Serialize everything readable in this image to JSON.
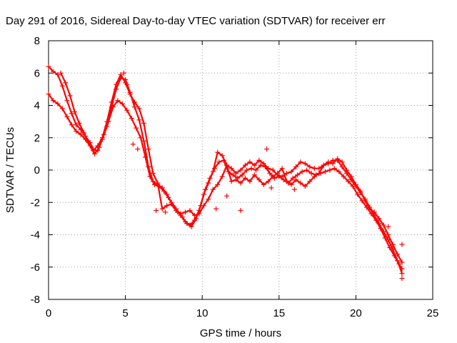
{
  "chart_data": {
    "type": "scatter",
    "title": "Day 291 of 2016, Sidereal Day-to-day VTEC variation (SDTVAR) for receiver err",
    "xlabel": "GPS time / hours",
    "ylabel": "SDTVAR / TECUs",
    "xlim": [
      0,
      25
    ],
    "ylim": [
      -8,
      8
    ],
    "x_ticks": [
      0,
      5,
      10,
      15,
      20,
      25
    ],
    "y_ticks": [
      -8,
      -6,
      -4,
      -2,
      0,
      2,
      4,
      6,
      8
    ],
    "x_tick_labels": [
      "0",
      "5",
      "10",
      "15",
      "20",
      "25"
    ],
    "y_tick_labels": [
      "-8",
      "-6",
      "-4",
      "-2",
      "0",
      "2",
      "4",
      "6",
      "8"
    ],
    "grid": true,
    "marker": "plus",
    "color": "#ff0000",
    "series": [
      {
        "x": [
          0.0,
          0.3,
          0.6,
          0.9,
          1.2,
          1.5,
          1.8,
          2.1,
          2.4,
          2.7,
          2.9,
          3.2,
          3.5,
          3.8,
          4.1,
          4.4,
          4.7,
          5.0,
          5.3,
          5.6,
          5.9,
          6.2,
          6.5,
          6.8,
          7.1,
          7.4,
          7.7,
          8.0,
          8.3,
          8.6,
          8.9,
          9.2,
          9.5,
          9.8,
          10.1,
          10.4,
          10.7,
          11.0,
          11.3,
          11.6,
          11.9,
          12.2,
          12.5,
          12.8,
          13.1,
          13.4,
          13.7,
          14.0,
          14.3,
          14.6,
          14.9,
          15.2,
          15.5,
          15.8,
          16.1,
          16.4,
          16.7,
          17.0,
          17.3,
          17.6,
          17.9,
          18.2,
          18.5,
          18.8,
          19.1,
          19.4,
          19.7,
          20.0,
          20.3,
          20.6,
          20.9,
          21.2,
          21.5,
          21.8,
          22.1,
          22.4,
          22.7,
          23.0
        ],
        "y": [
          6.4,
          6.1,
          5.9,
          5.2,
          4.3,
          3.5,
          2.8,
          2.5,
          2.1,
          1.7,
          1.3,
          1.2,
          1.9,
          2.7,
          3.9,
          5.0,
          5.7,
          5.6,
          4.8,
          3.9,
          3.1,
          1.8,
          0.2,
          -0.7,
          -0.9,
          -1.1,
          -1.5,
          -2.0,
          -2.4,
          -2.8,
          -3.2,
          -3.4,
          -3.1,
          -2.5,
          -1.5,
          -0.8,
          -0.1,
          1.1,
          0.9,
          0.3,
          0.1,
          -0.2,
          0.0,
          0.3,
          0.5,
          0.3,
          0.6,
          0.4,
          0.1,
          0.0,
          -0.3,
          -0.4,
          -0.2,
          -0.1,
          0.2,
          0.5,
          0.4,
          0.2,
          0.1,
          0.1,
          0.3,
          0.4,
          0.6,
          0.6,
          0.2,
          -0.2,
          -0.6,
          -1.0,
          -1.4,
          -1.8,
          -2.3,
          -2.8,
          -3.3,
          -3.8,
          -4.3,
          -4.9,
          -5.6,
          -6.4
        ]
      },
      {
        "x": [
          0.0,
          0.3,
          0.6,
          0.9,
          1.2,
          1.5,
          1.8,
          2.1,
          2.4,
          2.7,
          3.0,
          3.3,
          3.6,
          3.9,
          4.2,
          4.5,
          4.8,
          5.1,
          5.4,
          5.7,
          6.0,
          6.3,
          6.6,
          6.9,
          7.2,
          7.5,
          7.8,
          8.1,
          8.4,
          8.7,
          9.0,
          9.3,
          9.6,
          9.9,
          10.2,
          10.5,
          10.8,
          11.1,
          11.4,
          11.7,
          12.0,
          12.3,
          12.6,
          12.9,
          13.2,
          13.5,
          13.8,
          14.1,
          14.4,
          14.7,
          15.0,
          15.3,
          15.6,
          15.9,
          16.2,
          16.5,
          16.8,
          17.1,
          17.4,
          17.7,
          18.0,
          18.3,
          18.6,
          18.9,
          19.2,
          19.5,
          19.8,
          20.1,
          20.4,
          20.7,
          21.0,
          21.3,
          21.6,
          21.9,
          22.2,
          22.5,
          22.8,
          23.0
        ],
        "y": [
          4.7,
          4.3,
          4.1,
          3.8,
          3.3,
          2.8,
          2.4,
          2.2,
          1.9,
          1.5,
          1.0,
          1.4,
          2.2,
          3.0,
          3.9,
          4.3,
          4.1,
          3.7,
          3.2,
          2.6,
          2.0,
          0.8,
          -0.4,
          -0.9,
          -1.0,
          -1.3,
          -1.7,
          -2.2,
          -2.6,
          -2.9,
          -3.3,
          -3.5,
          -3.0,
          -2.2,
          -1.2,
          -0.5,
          0.1,
          0.5,
          0.6,
          -0.1,
          -0.3,
          -0.5,
          -0.3,
          0.0,
          0.1,
          0.0,
          0.3,
          0.2,
          -0.2,
          -0.5,
          -0.4,
          -0.6,
          -0.8,
          -0.5,
          -0.3,
          -0.1,
          0.0,
          -0.2,
          -0.3,
          -0.2,
          -0.1,
          0.0,
          0.1,
          -0.1,
          -0.4,
          -0.7,
          -1.0,
          -1.5,
          -1.9,
          -2.3,
          -2.7,
          -3.1,
          -3.6,
          -4.2,
          -4.8,
          -5.3,
          -5.8,
          -6.1
        ]
      },
      {
        "x": [
          0.8,
          1.1,
          1.4,
          1.7,
          2.0,
          2.3,
          2.6,
          2.9,
          3.2,
          3.5,
          3.8,
          4.1,
          4.4,
          4.7,
          5.0,
          5.3,
          5.6,
          5.9,
          6.2,
          6.5,
          6.8,
          7.1,
          7.4,
          7.7,
          8.0,
          8.3,
          8.6,
          8.9,
          9.2,
          9.5,
          9.8,
          10.1,
          10.4,
          10.7,
          11.0,
          11.3,
          11.6,
          11.9,
          12.2,
          12.5,
          12.8,
          13.1,
          13.4,
          13.7,
          14.0,
          14.3,
          14.6,
          14.9,
          15.2,
          15.5,
          15.8,
          16.1,
          16.4,
          16.7,
          17.0,
          17.3,
          17.6,
          17.9,
          18.2,
          18.5,
          18.8,
          19.1,
          19.4,
          19.7,
          20.0,
          20.3,
          20.6,
          20.9,
          21.2,
          21.5,
          21.8,
          22.1,
          22.4,
          22.7,
          23.0
        ],
        "y": [
          6.0,
          5.4,
          4.6,
          3.6,
          2.9,
          2.3,
          1.7,
          1.2,
          1.5,
          2.0,
          3.0,
          4.2,
          5.3,
          5.9,
          5.4,
          4.7,
          4.2,
          3.8,
          2.9,
          1.3,
          -0.2,
          -0.8,
          -2.4,
          -2.2,
          -2.1,
          -2.5,
          -2.7,
          -2.6,
          -2.5,
          -2.8,
          -2.7,
          -2.2,
          -1.8,
          -1.2,
          -0.9,
          -0.4,
          0.3,
          -0.7,
          -0.6,
          -0.8,
          -0.5,
          -0.7,
          -0.3,
          -0.6,
          -0.9,
          -0.7,
          -0.4,
          -0.2,
          0.1,
          -0.7,
          -0.9,
          -0.6,
          -0.8,
          -1.0,
          -0.7,
          -0.4,
          -0.2,
          0.3,
          0.5,
          0.4,
          0.7,
          0.5,
          0.0,
          -0.4,
          -0.9,
          -1.3,
          -1.9,
          -2.4,
          -2.6,
          -3.0,
          -3.4,
          -4.0,
          -4.6,
          -5.2,
          -5.7
        ]
      }
    ],
    "extra_points": {
      "x": [
        4.9,
        5.1,
        5.5,
        5.8,
        7.0,
        7.6,
        10.9,
        11.6,
        12.5,
        14.2,
        14.5,
        16.0,
        22.1,
        22.4,
        23.0,
        23.0
      ],
      "y": [
        6.0,
        5.3,
        1.6,
        1.3,
        -2.5,
        -2.6,
        -2.4,
        -1.6,
        -2.5,
        1.3,
        -1.1,
        -1.2,
        -3.5,
        -4.6,
        -4.6,
        -6.7
      ]
    }
  }
}
